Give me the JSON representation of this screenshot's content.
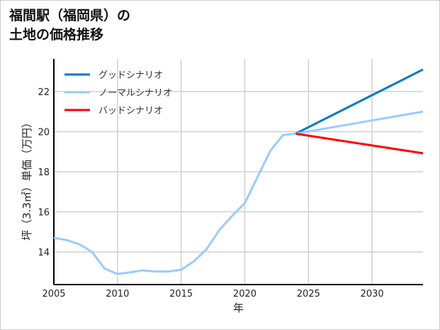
{
  "chart_data": {
    "type": "line",
    "title_lines": [
      "福間駅（福岡県）の",
      "土地の価格推移"
    ],
    "xlabel": "年",
    "ylabel": "坪（3.3㎡）単価（万円）",
    "xlim": [
      2005,
      2034
    ],
    "ylim": [
      12.37,
      23.63
    ],
    "xticks": [
      2005,
      2010,
      2015,
      2020,
      2025,
      2030
    ],
    "yticks": [
      14,
      16,
      18,
      20,
      22
    ],
    "grid": true,
    "legend_position": "top-left",
    "history": {
      "x": [
        2005,
        2006,
        2007,
        2008,
        2009,
        2010,
        2011,
        2012,
        2013,
        2014,
        2015,
        2016,
        2017,
        2018,
        2019,
        2020,
        2021,
        2022,
        2023,
        2024
      ],
      "y": [
        14.7,
        14.59,
        14.38,
        14.0,
        13.16,
        12.9,
        12.98,
        13.08,
        13.02,
        13.02,
        13.11,
        13.53,
        14.14,
        15.09,
        15.79,
        16.43,
        17.74,
        19.04,
        19.83,
        19.9
      ]
    },
    "series": [
      {
        "name": "グッドシナリオ",
        "color": "#0077cc",
        "x": [
          2024,
          2034
        ],
        "y": [
          19.9,
          23.1
        ]
      },
      {
        "name": "ノーマルシナリオ",
        "color": "#99ccff",
        "x": [
          2024,
          2034
        ],
        "y": [
          19.9,
          21.0
        ]
      },
      {
        "name": "バッドシナリオ",
        "color": "#ff0000",
        "x": [
          2024,
          2034
        ],
        "y": [
          19.9,
          18.92
        ]
      }
    ]
  }
}
